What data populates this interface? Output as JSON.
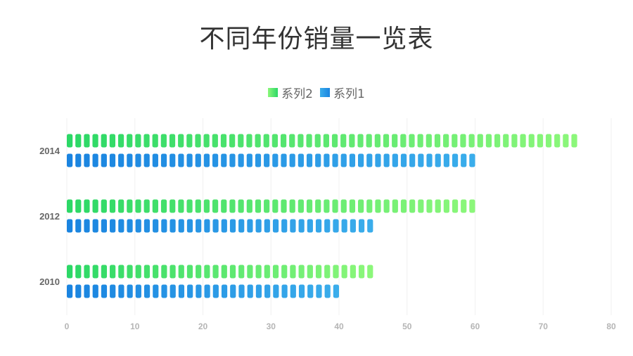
{
  "chart_data": {
    "type": "bar",
    "orientation": "horizontal",
    "title": "不同年份销量一览表",
    "categories": [
      "2010",
      "2012",
      "2014"
    ],
    "series": [
      {
        "name": "系列2",
        "values": [
          45,
          60,
          75
        ],
        "color_start": "#2BD866",
        "color_end": "#8CF77A"
      },
      {
        "name": "系列1",
        "values": [
          40,
          45,
          60
        ],
        "color_start": "#1A84E0",
        "color_end": "#3AADEB"
      }
    ],
    "xlim": [
      0,
      80
    ],
    "xticks": [
      0,
      10,
      20,
      30,
      40,
      50,
      60,
      70,
      80
    ],
    "grid": true,
    "legend_position": "top-center",
    "bar_style": "segmented"
  }
}
